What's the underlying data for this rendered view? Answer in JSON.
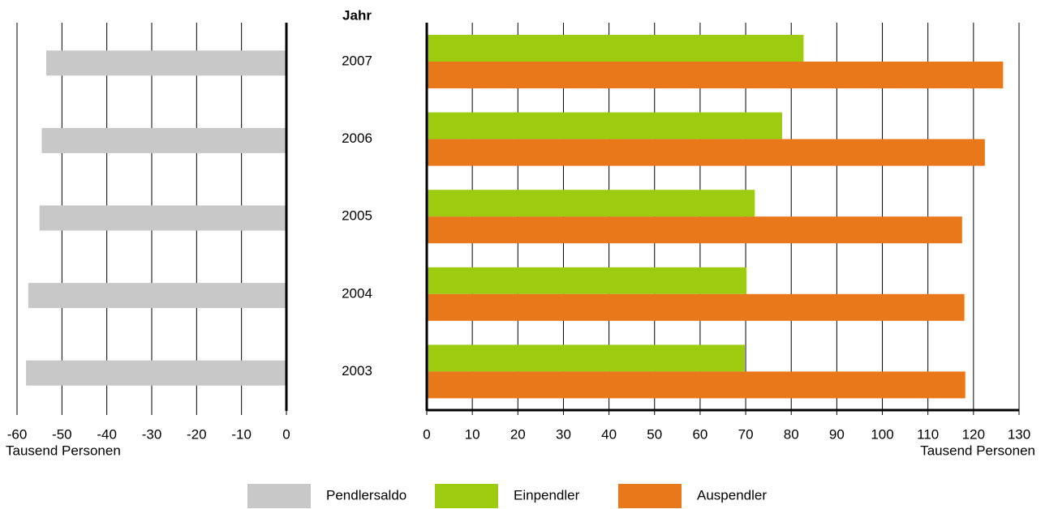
{
  "chart_data": [
    {
      "type": "hbar",
      "series": [
        {
          "name": "Pendlersaldo",
          "color": "#c8c8c8",
          "values": [
            -53.5,
            -54.5,
            -55,
            -57.5,
            -58
          ]
        }
      ],
      "xlim": [
        -60,
        0
      ],
      "xticks": [
        -60,
        -50,
        -40,
        -30,
        -20,
        -10,
        0
      ],
      "x_label": "Tausend Personen",
      "grid": true
    },
    {
      "type": "hbar",
      "y_label": "Jahr",
      "categories": [
        "2007",
        "2006",
        "2005",
        "2004",
        "2003"
      ],
      "series": [
        {
          "name": "Einpendler",
          "color": "#9dcb10",
          "values": [
            82.7,
            78,
            72,
            70.2,
            69.8
          ]
        },
        {
          "name": "Auspendler",
          "color": "#e8781a",
          "values": [
            126.5,
            122.5,
            117.5,
            118,
            118.2
          ]
        }
      ],
      "xlim": [
        0,
        130
      ],
      "xticks": [
        0,
        10,
        20,
        30,
        40,
        50,
        60,
        70,
        80,
        90,
        100,
        110,
        120,
        130
      ],
      "x_label": "Tausend Personen",
      "grid": true
    }
  ]
}
